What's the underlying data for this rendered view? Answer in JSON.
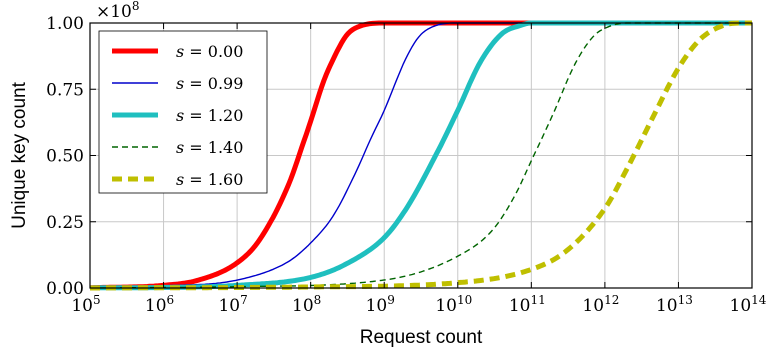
{
  "chart_data": {
    "type": "line",
    "xlabel": "Request count",
    "ylabel": "Unique key count",
    "x_scale": "log",
    "xlim": [
      100000,
      100000000000000
    ],
    "ylim": [
      0,
      1.0
    ],
    "y_multiplier": "×10^8",
    "y_multiplier_base": "×10",
    "y_multiplier_exp": "8",
    "x_ticks": [
      {
        "base": "10",
        "exp": "5",
        "value": 100000
      },
      {
        "base": "10",
        "exp": "6",
        "value": 1000000
      },
      {
        "base": "10",
        "exp": "7",
        "value": 10000000
      },
      {
        "base": "10",
        "exp": "8",
        "value": 100000000
      },
      {
        "base": "10",
        "exp": "9",
        "value": 1000000000
      },
      {
        "base": "10",
        "exp": "10",
        "value": 10000000000
      },
      {
        "base": "10",
        "exp": "11",
        "value": 100000000000
      },
      {
        "base": "10",
        "exp": "12",
        "value": 1000000000000
      },
      {
        "base": "10",
        "exp": "13",
        "value": 10000000000000
      },
      {
        "base": "10",
        "exp": "14",
        "value": 100000000000000
      }
    ],
    "y_ticks": [
      {
        "label": "0.00",
        "value": 0.0
      },
      {
        "label": "0.25",
        "value": 0.25
      },
      {
        "label": "0.50",
        "value": 0.5
      },
      {
        "label": "0.75",
        "value": 0.75
      },
      {
        "label": "1.00",
        "value": 1.0
      }
    ],
    "grid": true,
    "legend_position": "top-left",
    "series": [
      {
        "name": "s = 0.00",
        "legend_prefix": "s",
        "legend_value": "= 0.00",
        "color": "#ff0000",
        "style": "solid",
        "width": "thick",
        "x": [
          100000,
          1000000,
          3000000,
          10000000,
          20000000,
          50000000,
          80000000,
          100000000,
          150000000,
          200000000,
          300000000,
          400000000,
          1000000000,
          100000000000000
        ],
        "y": [
          0.001,
          0.01,
          0.03,
          0.095,
          0.18,
          0.39,
          0.55,
          0.63,
          0.78,
          0.86,
          0.95,
          0.98,
          1.0,
          1.0
        ]
      },
      {
        "name": "s = 0.99",
        "legend_prefix": "s",
        "legend_value": "= 0.99",
        "color": "#0000cc",
        "style": "solid",
        "width": "thin",
        "x": [
          100000,
          1000000,
          10000000,
          50000000,
          100000000,
          200000000,
          400000000,
          700000000,
          1000000000,
          1500000000,
          2000000000,
          3000000000,
          5000000000,
          10000000000,
          100000000000000
        ],
        "y": [
          0.002,
          0.008,
          0.03,
          0.1,
          0.17,
          0.27,
          0.43,
          0.58,
          0.67,
          0.79,
          0.87,
          0.95,
          0.99,
          1.0,
          1.0
        ]
      },
      {
        "name": "s = 1.20",
        "legend_prefix": "s",
        "legend_value": "= 1.20",
        "color": "#1fbfbf",
        "style": "solid",
        "width": "thick",
        "x": [
          100000,
          1000000,
          10000000,
          100000000,
          300000000,
          1000000000,
          2000000000,
          5000000000,
          10000000000,
          20000000000,
          40000000000,
          70000000000,
          100000000000,
          100000000000000
        ],
        "y": [
          0.0005,
          0.002,
          0.01,
          0.04,
          0.09,
          0.19,
          0.3,
          0.5,
          0.67,
          0.85,
          0.96,
          0.99,
          1.0,
          1.0
        ]
      },
      {
        "name": "s = 1.40",
        "legend_prefix": "s",
        "legend_value": "= 1.40",
        "color": "#006400",
        "style": "dashed",
        "width": "thin",
        "x": [
          100000,
          10000000,
          1000000000,
          10000000000,
          30000000000,
          60000000000,
          100000000000,
          200000000000,
          400000000000,
          700000000000,
          1000000000000,
          2000000000000,
          5000000000000,
          100000000000000
        ],
        "y": [
          0.0,
          0.005,
          0.03,
          0.12,
          0.22,
          0.35,
          0.48,
          0.66,
          0.85,
          0.95,
          0.98,
          1.0,
          1.0,
          1.0
        ]
      },
      {
        "name": "s = 1.60",
        "legend_prefix": "s",
        "legend_value": "= 1.60",
        "color": "#bfbf00",
        "style": "dashed",
        "width": "thick",
        "x": [
          100000,
          100000000,
          10000000000,
          100000000000,
          300000000000,
          1000000000000,
          2000000000000,
          5000000000000,
          10000000000000,
          20000000000000,
          40000000000000,
          70000000000000,
          100000000000000
        ],
        "y": [
          0.0,
          0.004,
          0.02,
          0.07,
          0.14,
          0.3,
          0.45,
          0.67,
          0.83,
          0.94,
          0.99,
          1.0,
          1.0
        ]
      }
    ]
  }
}
